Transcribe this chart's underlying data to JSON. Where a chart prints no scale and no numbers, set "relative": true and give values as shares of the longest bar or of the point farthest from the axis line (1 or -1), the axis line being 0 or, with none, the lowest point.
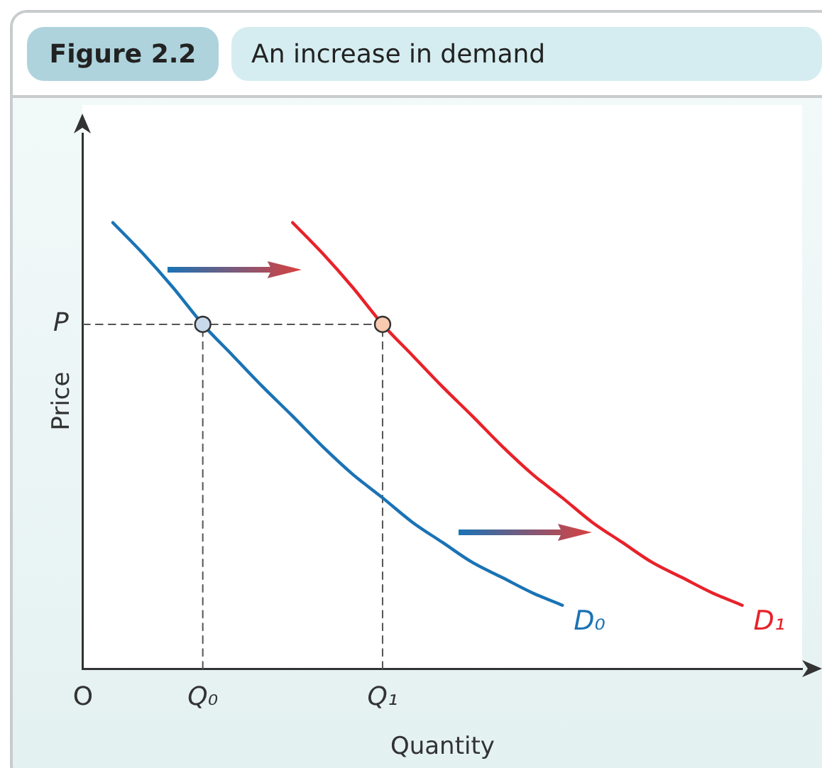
{
  "chart_data": {
    "type": "line",
    "title": "Figure 2.2",
    "subtitle": "An increase in demand",
    "xlabel": "Quantity",
    "ylabel": "Price",
    "relative": true,
    "categories": [
      "O",
      null,
      null,
      null,
      "Q₀",
      null,
      null,
      null,
      null,
      null,
      "Q₁",
      null,
      null,
      null,
      null,
      null,
      null,
      null,
      null,
      null,
      null,
      null,
      null,
      null,
      null
    ],
    "annotations": [
      "P"
    ],
    "grid": false,
    "legend": false,
    "series": [
      {
        "name": "D₀",
        "color": "#1a73b5",
        "marker": "none",
        "values": [
          null,
          1,
          0.931,
          0.855,
          0.772,
          0.702,
          0.632,
          0.566,
          0.498,
          0.436,
          0.383,
          0.328,
          0.283,
          0.238,
          0.204,
          0.17,
          0.142,
          null,
          null,
          null,
          null,
          null,
          null,
          null,
          null
        ]
      },
      {
        "name": "D₁",
        "color": "#e8222a",
        "marker": "none",
        "values": [
          null,
          null,
          null,
          null,
          null,
          null,
          null,
          1,
          0.931,
          0.855,
          0.772,
          0.702,
          0.632,
          0.566,
          0.498,
          0.436,
          0.383,
          0.328,
          0.283,
          0.238,
          0.204,
          0.17,
          0.142,
          null,
          null
        ]
      },
      {
        "color": "#555555",
        "line_style": "dashed",
        "marker": "none",
        "x": [
          "O",
          "Q₁"
        ],
        "values": [
          0.772,
          0.772
        ]
      },
      {
        "color": "#555555",
        "line_style": "dashed",
        "marker": "none",
        "x": [
          "Q₀",
          "Q₀"
        ],
        "values": [
          0,
          0.772
        ]
      },
      {
        "color": "#555555",
        "line_style": "dashed",
        "marker": "none",
        "x": [
          "Q₁",
          "Q₁"
        ],
        "values": [
          0,
          0.772
        ]
      },
      {
        "type": "scatter",
        "color": "#c9d9ec",
        "marker": "circle",
        "x": [
          "Q₀"
        ],
        "values": [
          0.772
        ]
      },
      {
        "type": "scatter",
        "color": "#f8cbb0",
        "marker": "circle",
        "x": [
          "Q₁"
        ],
        "values": [
          0.772
        ]
      }
    ]
  }
}
